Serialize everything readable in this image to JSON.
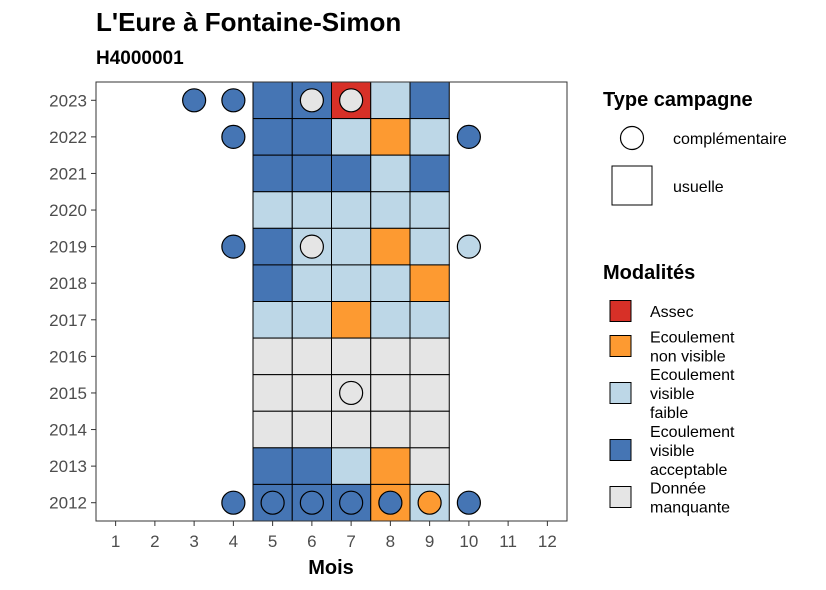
{
  "chart_data": {
    "type": "heatmap",
    "title": "L'Eure à Fontaine-Simon",
    "subtitle": "H4000001",
    "xlabel": "Mois",
    "x": [
      1,
      2,
      3,
      4,
      5,
      6,
      7,
      8,
      9,
      10,
      11,
      12
    ],
    "y": [
      2012,
      2013,
      2014,
      2015,
      2016,
      2017,
      2018,
      2019,
      2020,
      2021,
      2022,
      2023
    ],
    "xlim": [
      0.5,
      12.5
    ],
    "ylim": [
      2011.5,
      2023.5
    ],
    "grid": false,
    "colors": {
      "Assec": "#d73027",
      "Ecoulement non visible": "#fd9a31",
      "Ecoulement visible faible": "#bdd7e7",
      "Ecoulement visible acceptable": "#4575b4",
      "Donnée manquante": "#e5e5e5"
    },
    "usuelle": [
      {
        "year": 2023,
        "month": 5,
        "status": "Ecoulement visible acceptable"
      },
      {
        "year": 2023,
        "month": 6,
        "status": "Ecoulement visible acceptable"
      },
      {
        "year": 2023,
        "month": 7,
        "status": "Assec"
      },
      {
        "year": 2023,
        "month": 8,
        "status": "Ecoulement visible faible"
      },
      {
        "year": 2023,
        "month": 9,
        "status": "Ecoulement visible acceptable"
      },
      {
        "year": 2022,
        "month": 5,
        "status": "Ecoulement visible acceptable"
      },
      {
        "year": 2022,
        "month": 6,
        "status": "Ecoulement visible acceptable"
      },
      {
        "year": 2022,
        "month": 7,
        "status": "Ecoulement visible faible"
      },
      {
        "year": 2022,
        "month": 8,
        "status": "Ecoulement non visible"
      },
      {
        "year": 2022,
        "month": 9,
        "status": "Ecoulement visible faible"
      },
      {
        "year": 2021,
        "month": 5,
        "status": "Ecoulement visible acceptable"
      },
      {
        "year": 2021,
        "month": 6,
        "status": "Ecoulement visible acceptable"
      },
      {
        "year": 2021,
        "month": 7,
        "status": "Ecoulement visible acceptable"
      },
      {
        "year": 2021,
        "month": 8,
        "status": "Ecoulement visible faible"
      },
      {
        "year": 2021,
        "month": 9,
        "status": "Ecoulement visible acceptable"
      },
      {
        "year": 2020,
        "month": 5,
        "status": "Ecoulement visible faible"
      },
      {
        "year": 2020,
        "month": 6,
        "status": "Ecoulement visible faible"
      },
      {
        "year": 2020,
        "month": 7,
        "status": "Ecoulement visible faible"
      },
      {
        "year": 2020,
        "month": 8,
        "status": "Ecoulement visible faible"
      },
      {
        "year": 2020,
        "month": 9,
        "status": "Ecoulement visible faible"
      },
      {
        "year": 2019,
        "month": 5,
        "status": "Ecoulement visible acceptable"
      },
      {
        "year": 2019,
        "month": 6,
        "status": "Ecoulement visible faible"
      },
      {
        "year": 2019,
        "month": 7,
        "status": "Ecoulement visible faible"
      },
      {
        "year": 2019,
        "month": 8,
        "status": "Ecoulement non visible"
      },
      {
        "year": 2019,
        "month": 9,
        "status": "Ecoulement visible faible"
      },
      {
        "year": 2018,
        "month": 5,
        "status": "Ecoulement visible acceptable"
      },
      {
        "year": 2018,
        "month": 6,
        "status": "Ecoulement visible faible"
      },
      {
        "year": 2018,
        "month": 7,
        "status": "Ecoulement visible faible"
      },
      {
        "year": 2018,
        "month": 8,
        "status": "Ecoulement visible faible"
      },
      {
        "year": 2018,
        "month": 9,
        "status": "Ecoulement non visible"
      },
      {
        "year": 2017,
        "month": 5,
        "status": "Ecoulement visible faible"
      },
      {
        "year": 2017,
        "month": 6,
        "status": "Ecoulement visible faible"
      },
      {
        "year": 2017,
        "month": 7,
        "status": "Ecoulement non visible"
      },
      {
        "year": 2017,
        "month": 8,
        "status": "Ecoulement visible faible"
      },
      {
        "year": 2017,
        "month": 9,
        "status": "Ecoulement visible faible"
      },
      {
        "year": 2016,
        "month": 5,
        "status": "Donnée manquante"
      },
      {
        "year": 2016,
        "month": 6,
        "status": "Donnée manquante"
      },
      {
        "year": 2016,
        "month": 7,
        "status": "Donnée manquante"
      },
      {
        "year": 2016,
        "month": 8,
        "status": "Donnée manquante"
      },
      {
        "year": 2016,
        "month": 9,
        "status": "Donnée manquante"
      },
      {
        "year": 2015,
        "month": 5,
        "status": "Donnée manquante"
      },
      {
        "year": 2015,
        "month": 6,
        "status": "Donnée manquante"
      },
      {
        "year": 2015,
        "month": 7,
        "status": "Donnée manquante"
      },
      {
        "year": 2015,
        "month": 8,
        "status": "Donnée manquante"
      },
      {
        "year": 2015,
        "month": 9,
        "status": "Donnée manquante"
      },
      {
        "year": 2014,
        "month": 5,
        "status": "Donnée manquante"
      },
      {
        "year": 2014,
        "month": 6,
        "status": "Donnée manquante"
      },
      {
        "year": 2014,
        "month": 7,
        "status": "Donnée manquante"
      },
      {
        "year": 2014,
        "month": 8,
        "status": "Donnée manquante"
      },
      {
        "year": 2014,
        "month": 9,
        "status": "Donnée manquante"
      },
      {
        "year": 2013,
        "month": 5,
        "status": "Ecoulement visible acceptable"
      },
      {
        "year": 2013,
        "month": 6,
        "status": "Ecoulement visible acceptable"
      },
      {
        "year": 2013,
        "month": 7,
        "status": "Ecoulement visible faible"
      },
      {
        "year": 2013,
        "month": 8,
        "status": "Ecoulement non visible"
      },
      {
        "year": 2013,
        "month": 9,
        "status": "Donnée manquante"
      },
      {
        "year": 2012,
        "month": 5,
        "status": "Ecoulement visible acceptable"
      },
      {
        "year": 2012,
        "month": 6,
        "status": "Ecoulement visible acceptable"
      },
      {
        "year": 2012,
        "month": 7,
        "status": "Ecoulement visible acceptable"
      },
      {
        "year": 2012,
        "month": 8,
        "status": "Ecoulement non visible"
      },
      {
        "year": 2012,
        "month": 9,
        "status": "Ecoulement visible faible"
      }
    ],
    "complementaire": [
      {
        "year": 2023,
        "month": 3,
        "status": "Ecoulement visible acceptable"
      },
      {
        "year": 2023,
        "month": 4,
        "status": "Ecoulement visible acceptable"
      },
      {
        "year": 2023,
        "month": 6,
        "status": "Donnée manquante"
      },
      {
        "year": 2023,
        "month": 7,
        "status": "Donnée manquante"
      },
      {
        "year": 2022,
        "month": 4,
        "status": "Ecoulement visible acceptable"
      },
      {
        "year": 2022,
        "month": 10,
        "status": "Ecoulement visible acceptable"
      },
      {
        "year": 2019,
        "month": 4,
        "status": "Ecoulement visible acceptable"
      },
      {
        "year": 2019,
        "month": 6,
        "status": "Donnée manquante"
      },
      {
        "year": 2019,
        "month": 10,
        "status": "Ecoulement visible faible"
      },
      {
        "year": 2015,
        "month": 7,
        "status": "Donnée manquante"
      },
      {
        "year": 2012,
        "month": 4,
        "status": "Ecoulement visible acceptable"
      },
      {
        "year": 2012,
        "month": 5,
        "status": "Ecoulement visible acceptable"
      },
      {
        "year": 2012,
        "month": 6,
        "status": "Ecoulement visible acceptable"
      },
      {
        "year": 2012,
        "month": 7,
        "status": "Ecoulement visible acceptable"
      },
      {
        "year": 2012,
        "month": 8,
        "status": "Ecoulement visible acceptable"
      },
      {
        "year": 2012,
        "month": 9,
        "status": "Ecoulement non visible"
      },
      {
        "year": 2012,
        "month": 10,
        "status": "Ecoulement visible acceptable"
      }
    ],
    "legend_type": {
      "title": "Type campagne",
      "items": [
        "complémentaire",
        "usuelle"
      ],
      "placement": "right"
    },
    "legend_modalites": {
      "title": "Modalités",
      "items": [
        {
          "lines": [
            "Assec"
          ],
          "status": "Assec"
        },
        {
          "lines": [
            "Ecoulement",
            "non visible"
          ],
          "status": "Ecoulement non visible"
        },
        {
          "lines": [
            "Ecoulement",
            "visible",
            "faible"
          ],
          "status": "Ecoulement visible faible"
        },
        {
          "lines": [
            "Ecoulement",
            "visible",
            "acceptable"
          ],
          "status": "Ecoulement visible acceptable"
        },
        {
          "lines": [
            "Donnée",
            "manquante"
          ],
          "status": "Donnée manquante"
        }
      ],
      "placement": "right"
    }
  }
}
